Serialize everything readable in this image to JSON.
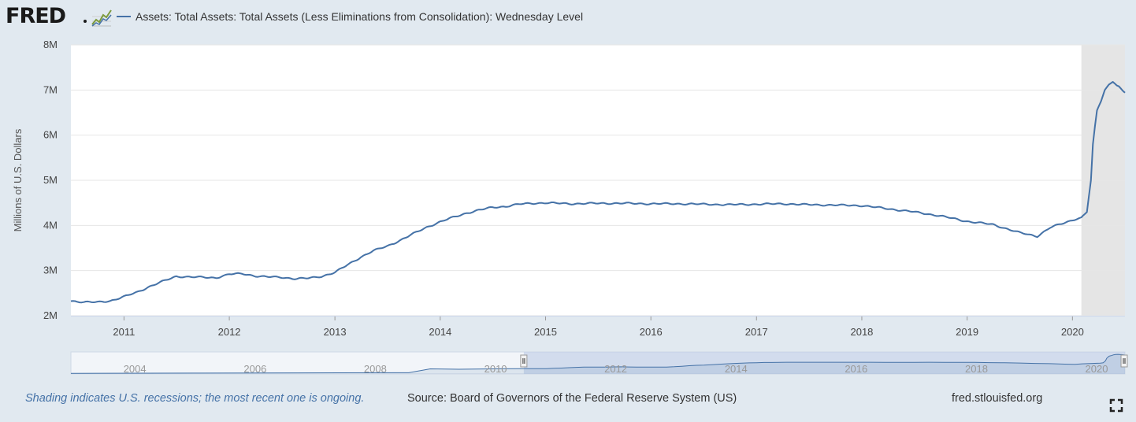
{
  "header": {
    "logo_text": "FRED",
    "logo_registered": "®"
  },
  "legend": {
    "series_label": "Assets: Total Assets: Total Assets (Less Eliminations from Consolidation): Wednesday Level",
    "series_color": "#4572a7"
  },
  "footer": {
    "recession_note": "Shading indicates U.S. recessions; the most recent one is ongoing.",
    "source": "Source: Board of Governors of the Federal Reserve System (US)",
    "site": "fred.stlouisfed.org"
  },
  "colors": {
    "background": "#e1e9f0",
    "plot_background": "#ffffff",
    "gridline": "#e6e6e6",
    "recession_shade": "#e5e5e5",
    "navigator_selection": "#bccbe5",
    "navigator_series": "#4572a7"
  },
  "icons": {
    "logo_graph": "line-graph-icon",
    "fullscreen": "fullscreen-icon",
    "navigator_handle": "drag-handle-icon"
  },
  "chart_data": {
    "type": "line",
    "title": "",
    "xlabel": "",
    "ylabel": "Millions of U.S. Dollars",
    "ylim": [
      2,
      8
    ],
    "y_unit": "M",
    "xlim": [
      "2010-07-01",
      "2020-07-01"
    ],
    "grid": true,
    "legend_placement": "top-left",
    "y_ticks": [
      {
        "value": 2,
        "label": "2M"
      },
      {
        "value": 3,
        "label": "3M"
      },
      {
        "value": 4,
        "label": "4M"
      },
      {
        "value": 5,
        "label": "5M"
      },
      {
        "value": 6,
        "label": "6M"
      },
      {
        "value": 7,
        "label": "7M"
      },
      {
        "value": 8,
        "label": "8M"
      }
    ],
    "x_ticks": [
      "2011",
      "2012",
      "2013",
      "2014",
      "2015",
      "2016",
      "2017",
      "2018",
      "2019",
      "2020"
    ],
    "recessions": [
      {
        "start": "2020-02-01",
        "end": "2020-07-01",
        "ongoing": true
      }
    ],
    "series": [
      {
        "name": "Assets: Total Assets: Total Assets (Less Eliminations from Consolidation): Wednesday Level",
        "x": [
          "2010-07-01",
          "2010-08-15",
          "2010-10-01",
          "2010-11-15",
          "2011-01-01",
          "2011-02-15",
          "2011-04-01",
          "2011-05-15",
          "2011-07-01",
          "2011-08-15",
          "2011-10-01",
          "2011-11-15",
          "2012-01-01",
          "2012-02-15",
          "2012-04-01",
          "2012-05-15",
          "2012-07-01",
          "2012-08-15",
          "2012-10-01",
          "2012-11-15",
          "2013-01-01",
          "2013-02-15",
          "2013-04-01",
          "2013-05-15",
          "2013-07-01",
          "2013-08-15",
          "2013-10-01",
          "2013-11-15",
          "2014-01-01",
          "2014-02-15",
          "2014-04-01",
          "2014-05-15",
          "2014-07-01",
          "2014-08-15",
          "2014-10-01",
          "2014-11-15",
          "2015-01-01",
          "2015-04-01",
          "2015-07-01",
          "2015-10-01",
          "2016-01-01",
          "2016-04-01",
          "2016-07-01",
          "2016-10-01",
          "2017-01-01",
          "2017-04-01",
          "2017-07-01",
          "2017-10-01",
          "2018-01-01",
          "2018-04-01",
          "2018-07-01",
          "2018-10-01",
          "2019-01-01",
          "2019-04-01",
          "2019-07-01",
          "2019-09-01",
          "2019-10-15",
          "2019-12-01",
          "2020-01-15",
          "2020-02-01",
          "2020-02-20",
          "2020-03-05",
          "2020-03-12",
          "2020-03-19",
          "2020-03-26",
          "2020-04-02",
          "2020-04-09",
          "2020-04-22",
          "2020-05-06",
          "2020-05-20",
          "2020-06-03",
          "2020-06-10",
          "2020-06-17",
          "2020-06-24",
          "2020-07-01"
        ],
        "values": [
          2.33,
          2.3,
          2.3,
          2.33,
          2.42,
          2.52,
          2.65,
          2.76,
          2.87,
          2.86,
          2.85,
          2.84,
          2.92,
          2.93,
          2.88,
          2.86,
          2.85,
          2.82,
          2.83,
          2.87,
          2.96,
          3.13,
          3.3,
          3.44,
          3.54,
          3.67,
          3.82,
          3.96,
          4.08,
          4.18,
          4.27,
          4.34,
          4.4,
          4.42,
          4.47,
          4.49,
          4.5,
          4.48,
          4.49,
          4.49,
          4.48,
          4.48,
          4.47,
          4.46,
          4.47,
          4.48,
          4.46,
          4.45,
          4.44,
          4.37,
          4.3,
          4.21,
          4.09,
          4.02,
          3.84,
          3.76,
          3.95,
          4.05,
          4.15,
          4.17,
          4.3,
          5.0,
          5.8,
          6.2,
          6.55,
          6.65,
          6.75,
          7.0,
          7.12,
          7.18,
          7.1,
          7.08,
          7.03,
          6.98,
          6.94
        ]
      }
    ],
    "navigator": {
      "x_ticks": [
        "2004",
        "2006",
        "2008",
        "2010",
        "2012",
        "2014",
        "2016",
        "2018",
        "2020"
      ],
      "range": [
        "2002-12-18",
        "2020-07-01"
      ],
      "selected": [
        "2010-07-01",
        "2020-07-01"
      ]
    }
  }
}
